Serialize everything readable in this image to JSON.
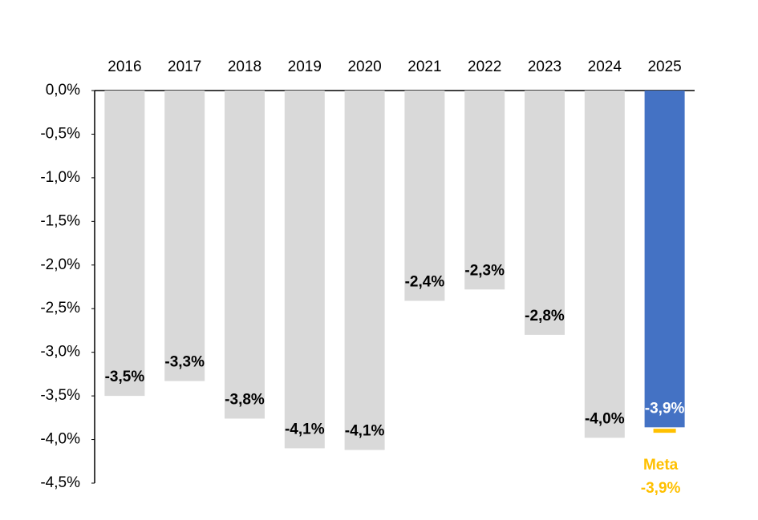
{
  "chart_data": {
    "type": "bar",
    "categories": [
      "2016",
      "2017",
      "2018",
      "2019",
      "2020",
      "2021",
      "2022",
      "2023",
      "2024",
      "2025"
    ],
    "values": [
      -3.5,
      -3.33,
      -3.76,
      -4.1,
      -4.12,
      -2.41,
      -2.28,
      -2.8,
      -3.98,
      -3.86
    ],
    "value_labels": [
      "-3,5%",
      "-3,3%",
      "-3,8%",
      "-4,1%",
      "-4,1%",
      "-2,4%",
      "-2,3%",
      "-2,8%",
      "-4,0%",
      "-3,9%"
    ],
    "colors": [
      "#d9d9d9",
      "#d9d9d9",
      "#d9d9d9",
      "#d9d9d9",
      "#d9d9d9",
      "#d9d9d9",
      "#d9d9d9",
      "#d9d9d9",
      "#d9d9d9",
      "#4472c4"
    ],
    "label_colors": [
      "#000000",
      "#000000",
      "#000000",
      "#000000",
      "#000000",
      "#000000",
      "#000000",
      "#000000",
      "#000000",
      "#ffffff"
    ],
    "ylim": [
      -4.5,
      0
    ],
    "yticks": [
      {
        "value": 0,
        "label": "0,0%"
      },
      {
        "value": -0.5,
        "label": "-0,5%"
      },
      {
        "value": -1,
        "label": "-1,0%"
      },
      {
        "value": -1.5,
        "label": "-1,5%"
      },
      {
        "value": -2,
        "label": "-2,0%"
      },
      {
        "value": -2.5,
        "label": "-2,5%"
      },
      {
        "value": -3,
        "label": "-3,0%"
      },
      {
        "value": -3.5,
        "label": "-3,5%"
      },
      {
        "value": -4,
        "label": "-4,0%"
      },
      {
        "value": -4.5,
        "label": "-4,5%"
      }
    ],
    "target": {
      "label": "Meta",
      "value": -3.9,
      "value_label": "-3,9%",
      "color": "#ffc000"
    }
  }
}
